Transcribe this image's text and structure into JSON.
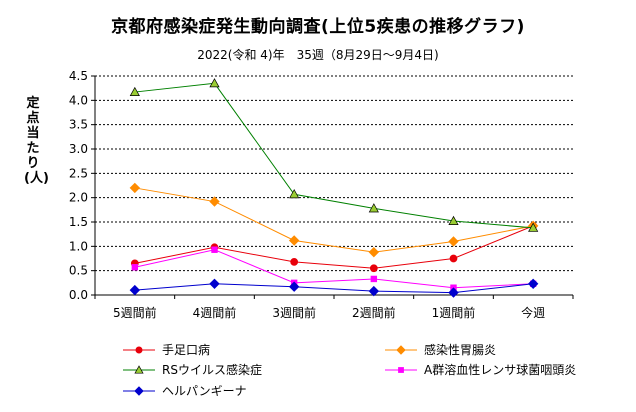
{
  "page": {
    "title": "京都府感染症発生動向調査(上位5疾患の推移グラフ)",
    "subtitle": "2022(令和 4)年　35週（8月29日～9月4日)"
  },
  "chart_data": {
    "type": "line",
    "title": "京都府感染症発生動向調査(上位5疾患の推移グラフ)",
    "subtitle": "2022(令和 4)年　35週（8月29日～9月4日)",
    "ylabel": "定点当たり　(人)",
    "xlabel": "",
    "ylim": [
      0,
      4.5
    ],
    "ytick_step": 0.5,
    "yticks": [
      "0.0",
      "0.5",
      "1.0",
      "1.5",
      "2.0",
      "2.5",
      "3.0",
      "3.5",
      "4.0",
      "4.5"
    ],
    "grid": true,
    "legend_position": "bottom",
    "categories": [
      "5週間前",
      "4週間前",
      "3週間前",
      "2週間前",
      "1週間前",
      "今週"
    ],
    "series": [
      {
        "name": "手足口病",
        "color": "#e8000b",
        "marker": "circle",
        "values": [
          0.65,
          0.98,
          0.68,
          0.55,
          0.75,
          1.42
        ]
      },
      {
        "name": "感染性胃腸炎",
        "color": "#ff8c00",
        "marker": "diamond",
        "values": [
          2.2,
          1.92,
          1.12,
          0.88,
          1.1,
          1.42
        ]
      },
      {
        "name": "RSウイルス感染症",
        "color": "#008000",
        "marker": "triangle",
        "values": [
          4.17,
          4.35,
          2.07,
          1.78,
          1.52,
          1.38
        ]
      },
      {
        "name": "A群溶血性レンサ球菌咽頭炎",
        "color": "#ff00ff",
        "marker": "square",
        "values": [
          0.57,
          0.93,
          0.25,
          0.33,
          0.15,
          0.23
        ]
      },
      {
        "name": "ヘルパンギーナ",
        "color": "#0000cd",
        "marker": "diamond",
        "values": [
          0.1,
          0.23,
          0.17,
          0.08,
          0.05,
          0.23
        ]
      }
    ]
  }
}
